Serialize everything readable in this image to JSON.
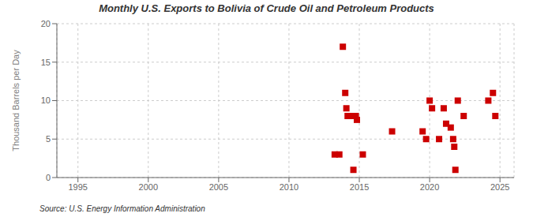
{
  "chart_data": {
    "type": "scatter",
    "title": "Monthly U.S. Exports to Bolivia of Crude Oil and Petroleum Products",
    "ylabel": "Thousand Barrels per Day",
    "annotations": [
      "Source: U.S. Energy Information Administration"
    ],
    "x": [
      2013.25,
      2013.58,
      2013.83,
      2014.0,
      2014.08,
      2014.17,
      2014.25,
      2014.33,
      2014.42,
      2014.58,
      2014.75,
      2014.83,
      2015.25,
      2017.33,
      2019.5,
      2019.75,
      2020.0,
      2020.17,
      2020.67,
      2021.0,
      2021.17,
      2021.5,
      2021.67,
      2021.75,
      2021.83,
      2022.0,
      2022.42,
      2024.17,
      2024.5,
      2024.67
    ],
    "values": [
      3.0,
      3.0,
      17.0,
      11.0,
      9.0,
      8.0,
      8.0,
      8.0,
      8.0,
      1.0,
      8.0,
      7.5,
      3.0,
      6.0,
      6.0,
      5.0,
      10.0,
      9.0,
      5.0,
      9.0,
      7.0,
      6.5,
      5.0,
      4.0,
      1.0,
      10.0,
      8.0,
      10.0,
      11.0,
      8.0
    ],
    "xlim": [
      1993.5,
      2026
    ],
    "ylim": [
      0,
      20
    ],
    "xticks": [
      1995,
      2000,
      2005,
      2010,
      2015,
      2020,
      2025
    ],
    "yticks": [
      0,
      5,
      10,
      15,
      20
    ],
    "color": "#cc0000",
    "marker": "square",
    "grid": true
  }
}
